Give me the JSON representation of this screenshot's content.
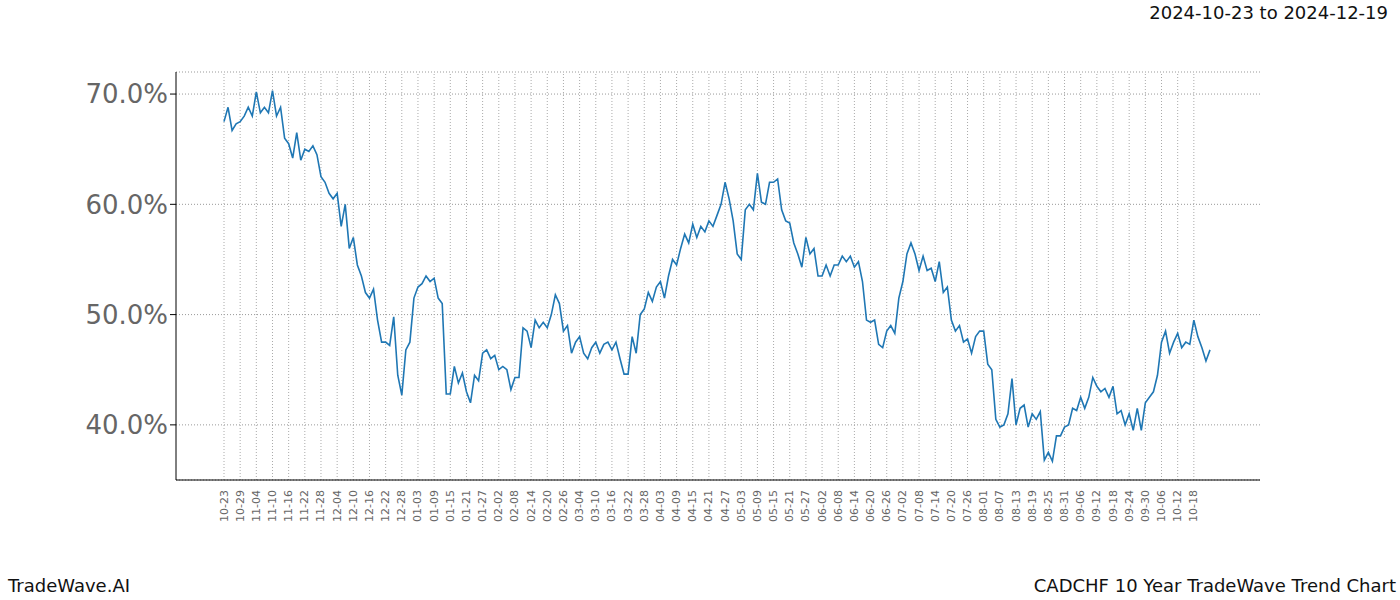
{
  "chart_data": {
    "type": "line",
    "title": "CADCHF 10 Year TradeWave Trend Chart",
    "subtitle": "2024-10-23 to 2024-12-19",
    "annotations": [
      "TradeWave.AI"
    ],
    "highlight": [
      "10-23",
      "12-19"
    ],
    "color": "#1f77b4",
    "grid": true,
    "ylim": [
      35,
      72
    ],
    "yticks": [
      {
        "value": 40,
        "label": "40.0%"
      },
      {
        "value": 50,
        "label": "50.0%"
      },
      {
        "value": 60,
        "label": "60.0%"
      },
      {
        "value": 70,
        "label": "70.0%"
      }
    ],
    "categories": [
      "10-23",
      null,
      null,
      null,
      "10-29",
      null,
      null,
      null,
      "11-04",
      null,
      null,
      null,
      "11-10",
      null,
      null,
      null,
      "11-16",
      null,
      null,
      null,
      "11-22",
      null,
      null,
      null,
      "11-28",
      null,
      null,
      null,
      "12-04",
      null,
      null,
      null,
      "12-10",
      null,
      null,
      null,
      "12-16",
      null,
      null,
      null,
      "12-22",
      null,
      null,
      null,
      "12-28",
      null,
      null,
      null,
      "01-03",
      null,
      null,
      null,
      "01-09",
      null,
      null,
      null,
      "01-15",
      null,
      null,
      null,
      "01-21",
      null,
      null,
      null,
      "01-27",
      null,
      null,
      null,
      "02-02",
      null,
      null,
      null,
      "02-08",
      null,
      null,
      null,
      "02-14",
      null,
      null,
      null,
      "02-20",
      null,
      null,
      null,
      "02-26",
      null,
      null,
      null,
      "03-04",
      null,
      null,
      null,
      "03-10",
      null,
      null,
      null,
      "03-16",
      null,
      null,
      null,
      "03-22",
      null,
      null,
      null,
      "03-28",
      null,
      null,
      null,
      "04-03",
      null,
      null,
      null,
      "04-09",
      null,
      null,
      null,
      "04-15",
      null,
      null,
      null,
      "04-21",
      null,
      null,
      null,
      "04-27",
      null,
      null,
      null,
      "05-03",
      null,
      null,
      null,
      "05-09",
      null,
      null,
      null,
      "05-15",
      null,
      null,
      null,
      "05-21",
      null,
      null,
      null,
      "05-27",
      null,
      null,
      null,
      "06-02",
      null,
      null,
      null,
      "06-08",
      null,
      null,
      null,
      "06-14",
      null,
      null,
      null,
      "06-20",
      null,
      null,
      null,
      "06-26",
      null,
      null,
      null,
      "07-02",
      null,
      null,
      null,
      "07-08",
      null,
      null,
      null,
      "07-14",
      null,
      null,
      null,
      "07-20",
      null,
      null,
      null,
      "07-26",
      null,
      null,
      null,
      "08-01",
      null,
      null,
      null,
      "08-07",
      null,
      null,
      null,
      "08-13",
      null,
      null,
      null,
      "08-19",
      null,
      null,
      null,
      "08-25",
      null,
      null,
      null,
      "08-31",
      null,
      null,
      null,
      "09-06",
      null,
      null,
      null,
      "09-12",
      null,
      null,
      null,
      "09-18",
      null,
      null,
      null,
      "09-24",
      null,
      null,
      null,
      "09-30",
      null,
      null,
      null,
      "10-06",
      null,
      null,
      null,
      "10-12",
      null,
      null,
      null,
      "10-18",
      null,
      null,
      null,
      null
    ],
    "values": [
      67.5,
      68.8,
      66.7,
      67.3,
      67.5,
      68.0,
      68.8,
      68.0,
      70.2,
      68.3,
      68.8,
      68.3,
      70.3,
      68.0,
      68.8,
      66.0,
      65.5,
      64.2,
      66.5,
      64.0,
      65.0,
      64.8,
      65.3,
      64.5,
      62.5,
      62.0,
      61.0,
      60.5,
      61.0,
      58.0,
      60.0,
      56.0,
      57.0,
      54.5,
      53.5,
      52.0,
      51.5,
      52.3,
      49.5,
      47.5,
      47.5,
      47.2,
      49.8,
      44.5,
      42.7,
      46.8,
      47.5,
      51.5,
      52.5,
      52.8,
      53.5,
      53.0,
      53.3,
      51.5,
      51.0,
      42.8,
      42.8,
      45.3,
      43.8,
      44.7,
      43.0,
      42.0,
      44.5,
      44.0,
      46.5,
      46.8,
      46.0,
      46.3,
      45.0,
      45.3,
      45.0,
      43.2,
      44.3,
      44.3,
      48.8,
      48.5,
      47.0,
      49.5,
      48.8,
      49.3,
      48.8,
      50.0,
      51.8,
      51.0,
      48.5,
      49.0,
      46.5,
      47.5,
      48.0,
      46.5,
      46.0,
      47.0,
      47.5,
      46.5,
      47.3,
      47.5,
      46.8,
      47.5,
      46.0,
      44.6,
      44.6,
      48.0,
      46.5,
      50.0,
      50.5,
      52.0,
      51.2,
      52.5,
      53.0,
      51.5,
      53.5,
      55.0,
      54.5,
      56.0,
      57.3,
      56.5,
      58.2,
      57.0,
      58.0,
      57.5,
      58.5,
      58.0,
      59.0,
      60.0,
      62.0,
      60.5,
      58.5,
      55.5,
      55.0,
      59.5,
      60.0,
      59.5,
      62.8,
      60.2,
      60.0,
      62.0,
      62.0,
      62.3,
      59.5,
      58.5,
      58.3,
      56.5,
      55.5,
      54.3,
      57.0,
      55.5,
      56.0,
      53.5,
      53.5,
      54.5,
      53.5,
      54.5,
      54.5,
      55.3,
      54.8,
      55.3,
      54.3,
      54.8,
      53.0,
      49.5,
      49.3,
      49.5,
      47.3,
      47.0,
      48.5,
      49.0,
      48.3,
      51.5,
      53.0,
      55.5,
      56.5,
      55.5,
      54.0,
      55.3,
      54.0,
      54.2,
      53.0,
      54.8,
      52.0,
      52.5,
      49.5,
      48.5,
      49.0,
      47.5,
      47.8,
      46.5,
      48.0,
      48.5,
      48.5,
      45.5,
      45.0,
      40.5,
      39.8,
      40.0,
      41.0,
      44.2,
      40.0,
      41.5,
      41.8,
      39.8,
      41.0,
      40.5,
      41.2,
      36.8,
      37.5,
      36.7,
      39.0,
      39.0,
      39.8,
      40.0,
      41.5,
      41.3,
      42.5,
      41.5,
      42.5,
      44.3,
      43.5,
      43.0,
      43.3,
      42.5,
      43.5,
      41.0,
      41.3,
      40.0,
      41.0,
      39.5,
      41.5,
      39.5,
      42.0,
      42.5,
      43.0,
      44.5,
      47.5,
      48.5,
      46.5,
      47.5,
      48.3,
      47.0,
      47.5,
      47.3,
      49.5,
      48.0,
      47.0,
      45.8,
      46.8
    ]
  }
}
